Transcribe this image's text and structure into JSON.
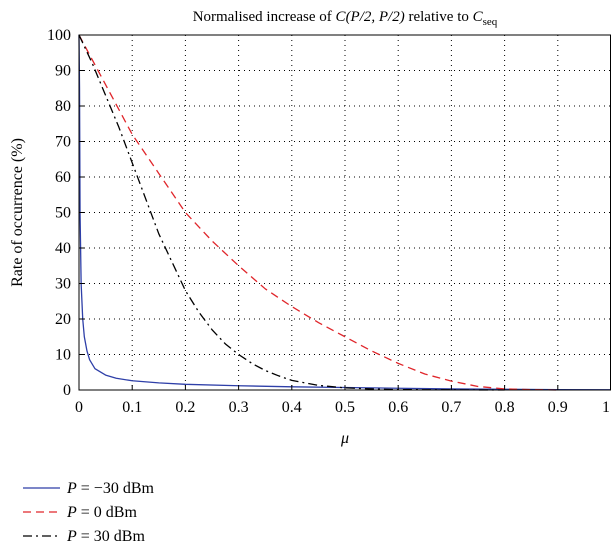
{
  "chart_data": {
    "type": "line",
    "title": {
      "prefix": "Normalised increase of ",
      "func": "C",
      "args": "(P/2, P/2)",
      "middle": " relative to ",
      "sub_base": "C",
      "sub": "seq"
    },
    "xlabel": "μ",
    "ylabel": "Rate of occurrence (%)",
    "xlim": [
      0,
      1
    ],
    "ylim": [
      0,
      100
    ],
    "x_ticks": [
      "0",
      "0.1",
      "0.2",
      "0.3",
      "0.4",
      "0.5",
      "0.6",
      "0.7",
      "0.8",
      "0.9",
      "1"
    ],
    "y_ticks": [
      "0",
      "10",
      "20",
      "30",
      "40",
      "50",
      "60",
      "70",
      "80",
      "90",
      "100"
    ],
    "grid": true,
    "legend_position": "below-left",
    "series": [
      {
        "name": "P = −30 dBm",
        "legend_var": "P",
        "legend_rest": " = −30 dBm",
        "color": "#2e3fa8",
        "dash": "solid",
        "x": [
          0,
          0.001,
          0.002,
          0.004,
          0.007,
          0.01,
          0.015,
          0.02,
          0.03,
          0.05,
          0.07,
          0.1,
          0.15,
          0.2,
          0.3,
          0.4,
          0.5,
          0.6,
          0.7,
          0.8,
          0.9,
          1.0
        ],
        "y": [
          100,
          85,
          50,
          30,
          20,
          15,
          11,
          8.5,
          6,
          4.2,
          3.3,
          2.6,
          2.0,
          1.6,
          1.2,
          0.9,
          0.7,
          0.5,
          0.3,
          0.2,
          0.1,
          0.05
        ]
      },
      {
        "name": "P = 0 dBm",
        "legend_var": "P",
        "legend_rest": " = 0 dBm",
        "color": "#e0262b",
        "dash": "dashed",
        "x": [
          0,
          0.05,
          0.1,
          0.15,
          0.2,
          0.25,
          0.3,
          0.35,
          0.4,
          0.45,
          0.5,
          0.55,
          0.6,
          0.65,
          0.7,
          0.75,
          0.8,
          0.85,
          0.9
        ],
        "y": [
          100,
          86,
          72,
          61,
          50,
          42,
          35,
          28.5,
          23.5,
          19,
          15,
          11,
          7.5,
          4.5,
          2.5,
          1.0,
          0.3,
          0.1,
          0
        ]
      },
      {
        "name": "P = 30 dBm",
        "legend_var": "P",
        "legend_rest": " = 30 dBm",
        "color": "#000000",
        "dash": "dashdot",
        "x": [
          0,
          0.025,
          0.05,
          0.075,
          0.1,
          0.125,
          0.15,
          0.175,
          0.2,
          0.225,
          0.25,
          0.275,
          0.3,
          0.325,
          0.35,
          0.375,
          0.4,
          0.45,
          0.5,
          0.55,
          0.6,
          0.7,
          0.8
        ],
        "y": [
          100,
          92,
          83,
          74,
          64,
          54,
          44,
          36,
          28,
          22,
          17,
          13,
          10,
          7.5,
          5.5,
          4,
          2.7,
          1.3,
          0.6,
          0.3,
          0.1,
          0.05,
          0
        ]
      }
    ]
  }
}
